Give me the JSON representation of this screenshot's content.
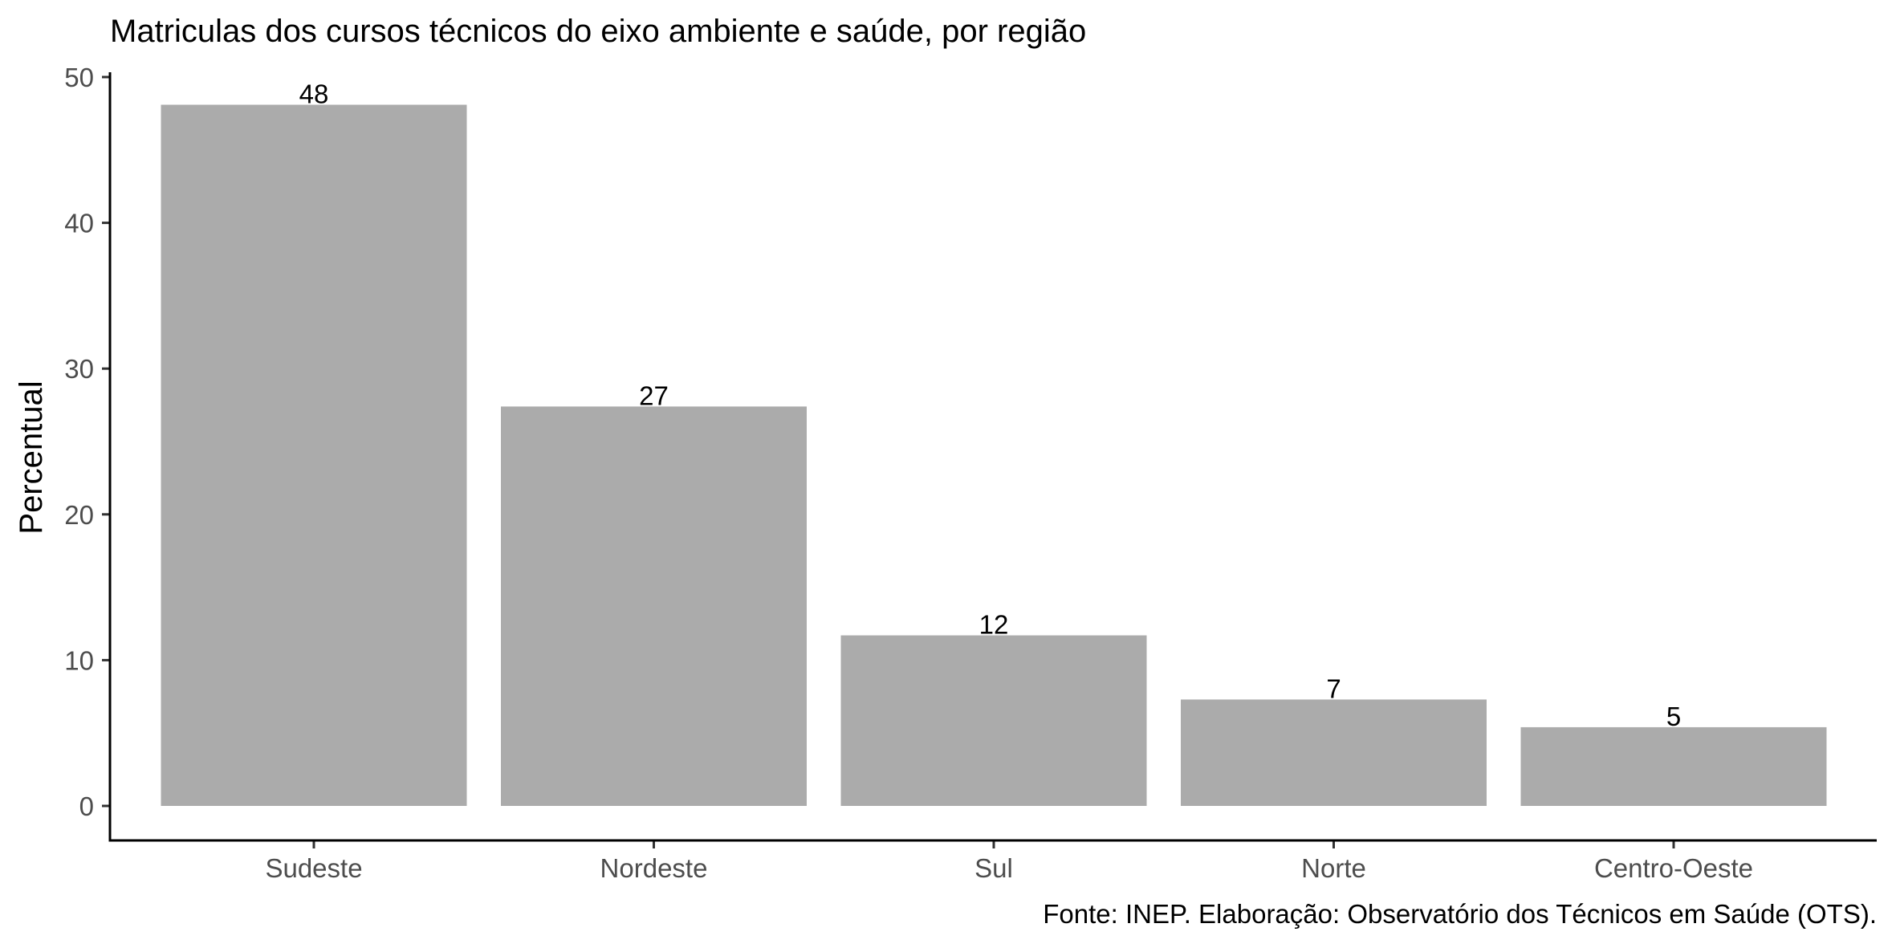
{
  "chart_data": {
    "type": "bar",
    "title": "Matriculas dos cursos técnicos do eixo ambiente e saúde, por região",
    "xlabel": "",
    "ylabel": "Percentual",
    "categories": [
      "Sudeste",
      "Nordeste",
      "Sul",
      "Norte",
      "Centro-Oeste"
    ],
    "values": [
      48.1,
      27.4,
      11.7,
      7.3,
      5.4
    ],
    "data_labels": [
      "48",
      "27",
      "12",
      "7",
      "5"
    ],
    "ylim": [
      0,
      50
    ],
    "yticks": [
      0,
      10,
      20,
      30,
      40,
      50
    ],
    "grid": false,
    "legend": "none",
    "caption": "Fonte: INEP. Elaboração: Observatório dos Técnicos em Saúde (OTS).",
    "colors": {
      "bar": "#ababab",
      "axis": "#000000",
      "tick_label": "#4d4d4d",
      "text": "#000000"
    }
  }
}
